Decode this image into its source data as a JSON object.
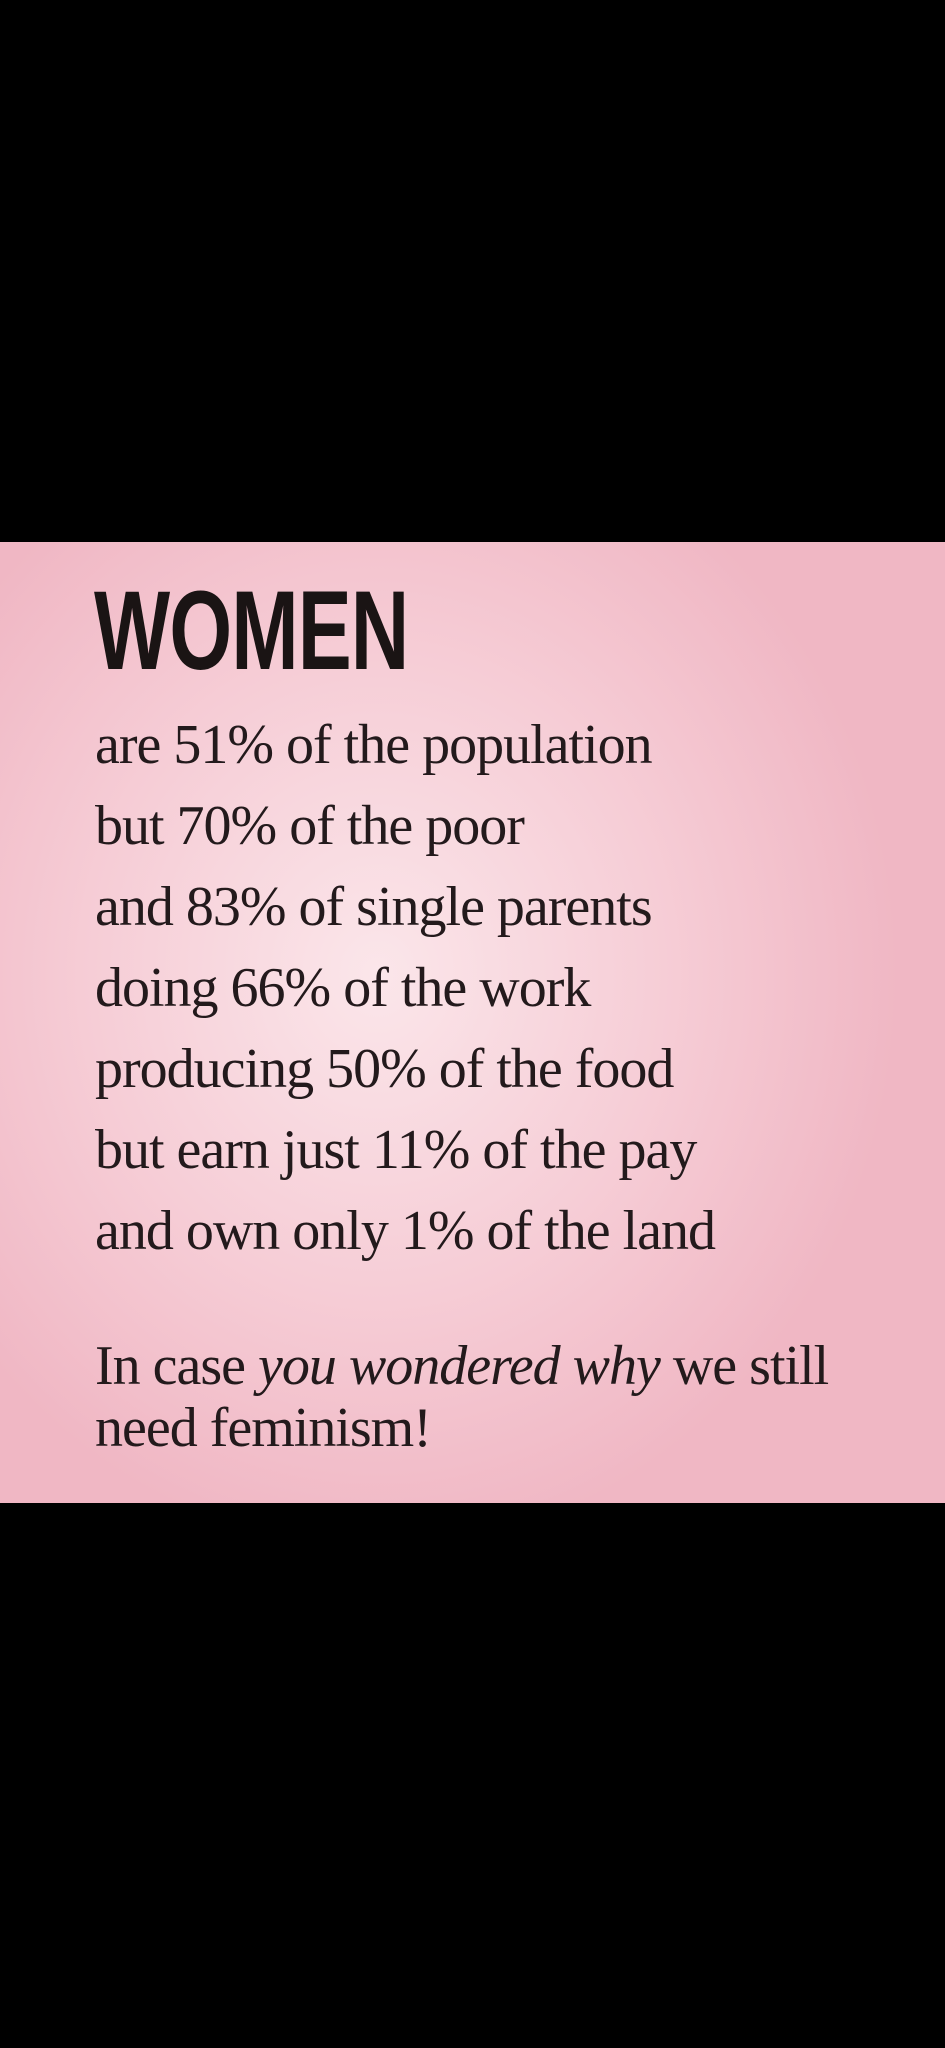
{
  "headline": "WOMEN",
  "lines": [
    "are 51% of the population",
    "but 70% of the poor",
    "and 83% of single parents",
    "doing 66% of the work",
    "producing 50% of the food",
    "but earn just 11% of the pay",
    "and own only 1% of the land"
  ],
  "closing": {
    "part1": "In case ",
    "italic": "you wondered why",
    "part2": " we still need feminism!"
  },
  "colors": {
    "background": "#000000",
    "card": "#f6cdd6",
    "text": "#231a1c"
  }
}
